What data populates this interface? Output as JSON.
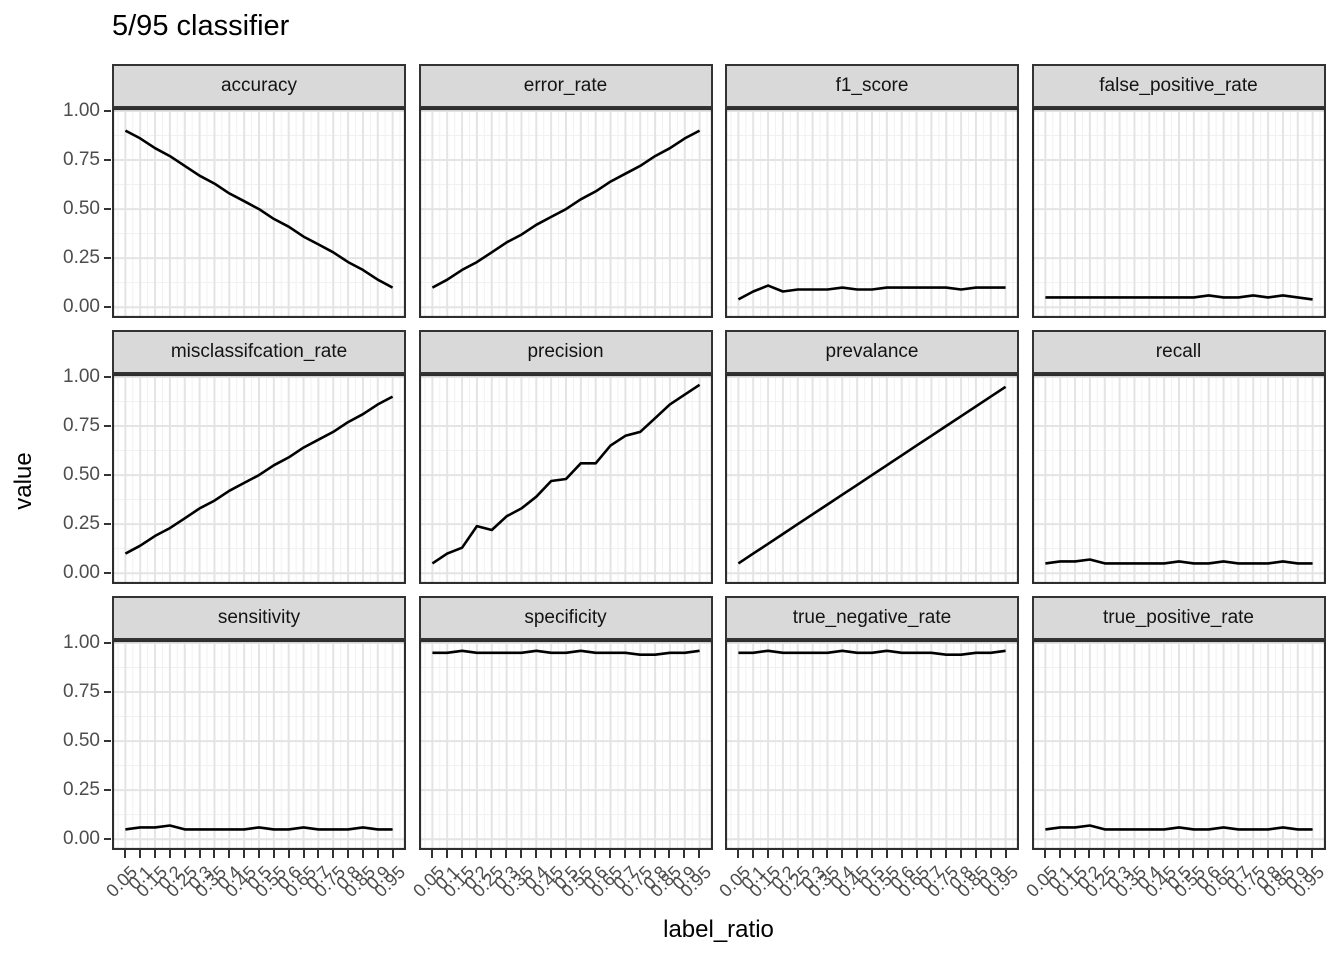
{
  "chart_data": {
    "type": "line",
    "title": "5/95 classifier",
    "xlabel": "label_ratio",
    "ylabel": "value",
    "x": [
      0.05,
      0.1,
      0.15,
      0.2,
      0.25,
      0.3,
      0.35,
      0.4,
      0.45,
      0.5,
      0.55,
      0.6,
      0.65,
      0.7,
      0.75,
      0.8,
      0.85,
      0.9,
      0.95
    ],
    "x_tick_labels": [
      "0.05",
      "0.1",
      "0.15",
      "0.2",
      "0.25",
      "0.3",
      "0.35",
      "0.4",
      "0.45",
      "0.5",
      "0.55",
      "0.6",
      "0.65",
      "0.7",
      "0.75",
      "0.8",
      "0.85",
      "0.9",
      "0.95"
    ],
    "y_tick_labels": [
      "0.00",
      "0.25",
      "0.50",
      "0.75",
      "1.00"
    ],
    "y_ticks": [
      0,
      0.25,
      0.5,
      0.75,
      1
    ],
    "ylim": [
      0,
      1
    ],
    "legend": "none",
    "grid": "major+minor",
    "layout": {
      "rows": 3,
      "cols": 4
    },
    "facets": [
      {
        "name": "accuracy",
        "values": [
          0.9,
          0.86,
          0.81,
          0.77,
          0.72,
          0.67,
          0.63,
          0.58,
          0.54,
          0.5,
          0.45,
          0.41,
          0.36,
          0.32,
          0.28,
          0.23,
          0.19,
          0.14,
          0.1
        ]
      },
      {
        "name": "error_rate",
        "values": [
          0.1,
          0.14,
          0.19,
          0.23,
          0.28,
          0.33,
          0.37,
          0.42,
          0.46,
          0.5,
          0.55,
          0.59,
          0.64,
          0.68,
          0.72,
          0.77,
          0.81,
          0.86,
          0.9
        ]
      },
      {
        "name": "f1_score",
        "values": [
          0.04,
          0.08,
          0.11,
          0.08,
          0.09,
          0.09,
          0.09,
          0.1,
          0.09,
          0.09,
          0.1,
          0.1,
          0.1,
          0.1,
          0.1,
          0.09,
          0.1,
          0.1,
          0.1
        ]
      },
      {
        "name": "false_positive_rate",
        "values": [
          0.05,
          0.05,
          0.05,
          0.05,
          0.05,
          0.05,
          0.05,
          0.05,
          0.05,
          0.05,
          0.05,
          0.06,
          0.05,
          0.05,
          0.06,
          0.05,
          0.06,
          0.05,
          0.04
        ]
      },
      {
        "name": "misclassifcation_rate",
        "values": [
          0.1,
          0.14,
          0.19,
          0.23,
          0.28,
          0.33,
          0.37,
          0.42,
          0.46,
          0.5,
          0.55,
          0.59,
          0.64,
          0.68,
          0.72,
          0.77,
          0.81,
          0.86,
          0.9
        ]
      },
      {
        "name": "precision",
        "values": [
          0.05,
          0.1,
          0.13,
          0.24,
          0.22,
          0.29,
          0.33,
          0.39,
          0.47,
          0.48,
          0.56,
          0.56,
          0.65,
          0.7,
          0.72,
          0.79,
          0.86,
          0.91,
          0.96
        ]
      },
      {
        "name": "prevalance",
        "values": [
          0.05,
          0.1,
          0.15,
          0.2,
          0.25,
          0.3,
          0.35,
          0.4,
          0.45,
          0.5,
          0.55,
          0.6,
          0.65,
          0.7,
          0.75,
          0.8,
          0.85,
          0.9,
          0.95
        ]
      },
      {
        "name": "recall",
        "values": [
          0.05,
          0.06,
          0.06,
          0.07,
          0.05,
          0.05,
          0.05,
          0.05,
          0.05,
          0.06,
          0.05,
          0.05,
          0.06,
          0.05,
          0.05,
          0.05,
          0.06,
          0.05,
          0.05
        ]
      },
      {
        "name": "sensitivity",
        "values": [
          0.05,
          0.06,
          0.06,
          0.07,
          0.05,
          0.05,
          0.05,
          0.05,
          0.05,
          0.06,
          0.05,
          0.05,
          0.06,
          0.05,
          0.05,
          0.05,
          0.06,
          0.05,
          0.05
        ]
      },
      {
        "name": "specificity",
        "values": [
          0.95,
          0.95,
          0.96,
          0.95,
          0.95,
          0.95,
          0.95,
          0.96,
          0.95,
          0.95,
          0.96,
          0.95,
          0.95,
          0.95,
          0.94,
          0.94,
          0.95,
          0.95,
          0.96
        ]
      },
      {
        "name": "true_negative_rate",
        "values": [
          0.95,
          0.95,
          0.96,
          0.95,
          0.95,
          0.95,
          0.95,
          0.96,
          0.95,
          0.95,
          0.96,
          0.95,
          0.95,
          0.95,
          0.94,
          0.94,
          0.95,
          0.95,
          0.96
        ]
      },
      {
        "name": "true_positive_rate",
        "values": [
          0.05,
          0.06,
          0.06,
          0.07,
          0.05,
          0.05,
          0.05,
          0.05,
          0.05,
          0.06,
          0.05,
          0.05,
          0.06,
          0.05,
          0.05,
          0.05,
          0.06,
          0.05,
          0.05
        ]
      }
    ],
    "colors": {
      "line": "#000000",
      "strip_bg": "#d9d9d9",
      "panel_border": "#2e2e2e",
      "grid_major": "#e4e4e4",
      "grid_minor": "#f1f1f1",
      "tick_text": "#4d4d4d"
    }
  }
}
